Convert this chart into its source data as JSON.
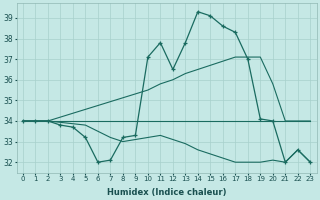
{
  "xlabel": "Humidex (Indice chaleur)",
  "bg_color": "#c5e8e5",
  "grid_color": "#a8d0cc",
  "line_color": "#1a6b60",
  "xlim": [
    -0.5,
    23.5
  ],
  "ylim": [
    31.5,
    39.7
  ],
  "xticks": [
    0,
    1,
    2,
    3,
    4,
    5,
    6,
    7,
    8,
    9,
    10,
    11,
    12,
    13,
    14,
    15,
    16,
    17,
    18,
    19,
    20,
    21,
    22,
    23
  ],
  "yticks": [
    32,
    33,
    34,
    35,
    36,
    37,
    38,
    39
  ],
  "line1_x": [
    0,
    1,
    2,
    3,
    4,
    5,
    6,
    7,
    8,
    9,
    10,
    11,
    12,
    13,
    14,
    15,
    16,
    17,
    18,
    19,
    20,
    21,
    22,
    23
  ],
  "line1_y": [
    34.0,
    34.0,
    34.0,
    33.8,
    33.7,
    33.2,
    32.0,
    32.1,
    33.2,
    33.3,
    37.1,
    37.8,
    36.5,
    37.8,
    39.3,
    39.1,
    38.6,
    38.3,
    37.0,
    34.1,
    34.0,
    32.0,
    32.6,
    32.0
  ],
  "line2_x": [
    0,
    2,
    19,
    23
  ],
  "line2_y": [
    34.0,
    34.0,
    34.0,
    34.0
  ],
  "line3_x": [
    0,
    2,
    10,
    11,
    12,
    13,
    14,
    15,
    16,
    17,
    18,
    19,
    20,
    21,
    22,
    23
  ],
  "line3_y": [
    34.0,
    34.0,
    35.5,
    35.8,
    36.0,
    36.3,
    36.5,
    36.7,
    36.9,
    37.1,
    37.1,
    37.1,
    35.8,
    34.0,
    34.0,
    34.0
  ],
  "line4_x": [
    0,
    2,
    5,
    6,
    7,
    8,
    9,
    10,
    11,
    12,
    13,
    14,
    15,
    16,
    17,
    18,
    19,
    20,
    21,
    22,
    23
  ],
  "line4_y": [
    34.0,
    34.0,
    33.8,
    33.5,
    33.2,
    33.0,
    33.1,
    33.2,
    33.3,
    33.1,
    32.9,
    32.6,
    32.4,
    32.2,
    32.0,
    32.0,
    32.0,
    32.1,
    32.0,
    32.6,
    32.0
  ]
}
